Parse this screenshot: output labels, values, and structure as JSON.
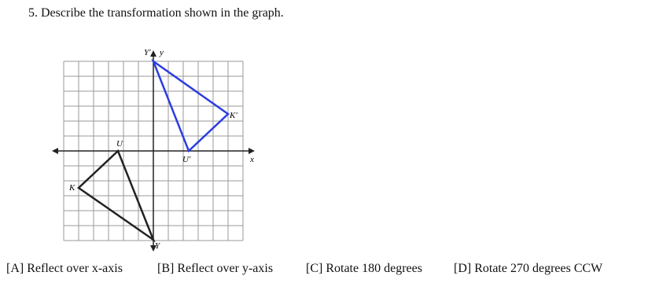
{
  "question": {
    "text": "5.  Describe the transformation shown in the graph."
  },
  "graph": {
    "labels": {
      "y_axis": "y",
      "x_axis": "x",
      "Y_prime": "Y'",
      "K_prime": "K'",
      "U_prime": "U'",
      "U": "U",
      "K": "K",
      "Y": "Y"
    }
  },
  "choices": [
    "[A] Reflect over x-axis",
    "[B] Reflect over y-axis",
    "[C] Rotate 180 degrees",
    "[D] Rotate 270 degrees CCW"
  ]
}
